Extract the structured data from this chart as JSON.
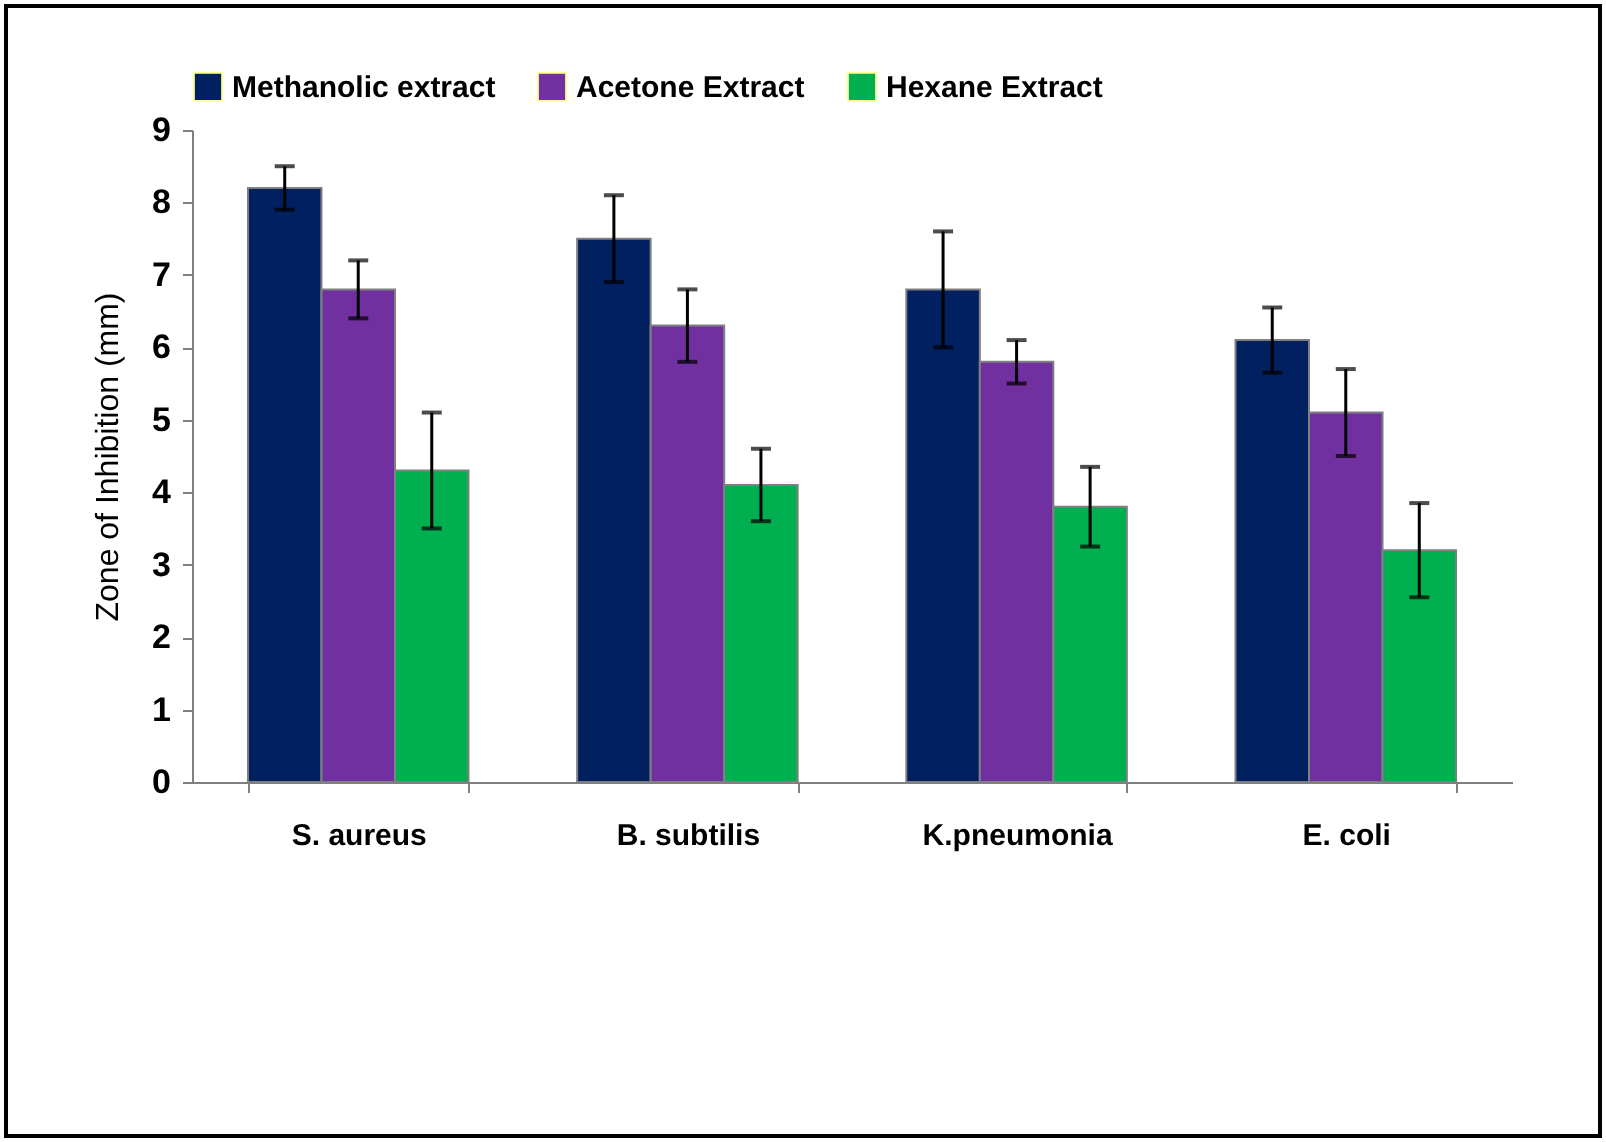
{
  "chart_data": {
    "type": "bar",
    "ylabel": "Zone of Inhibition (mm)",
    "categories": [
      "S. aureus",
      "B. subtilis",
      "K.pneumonia",
      "E. coli"
    ],
    "series": [
      {
        "name": "Methanolic extract",
        "color": "#002060",
        "values": [
          8.2,
          7.5,
          6.8,
          6.1
        ],
        "errors": [
          0.3,
          0.6,
          0.8,
          0.45
        ]
      },
      {
        "name": "Acetone Extract",
        "color": "#7030a0",
        "values": [
          6.8,
          6.3,
          5.8,
          5.1
        ],
        "errors": [
          0.4,
          0.5,
          0.3,
          0.6
        ]
      },
      {
        "name": "Hexane Extract",
        "color": "#00b050",
        "values": [
          4.3,
          4.1,
          3.8,
          3.2
        ],
        "errors": [
          0.8,
          0.5,
          0.55,
          0.65
        ]
      }
    ],
    "ylim": [
      0,
      9
    ],
    "yticks": [
      0,
      1,
      2,
      3,
      4,
      5,
      6,
      7,
      8,
      9
    ],
    "grid": false,
    "legend": "top"
  }
}
